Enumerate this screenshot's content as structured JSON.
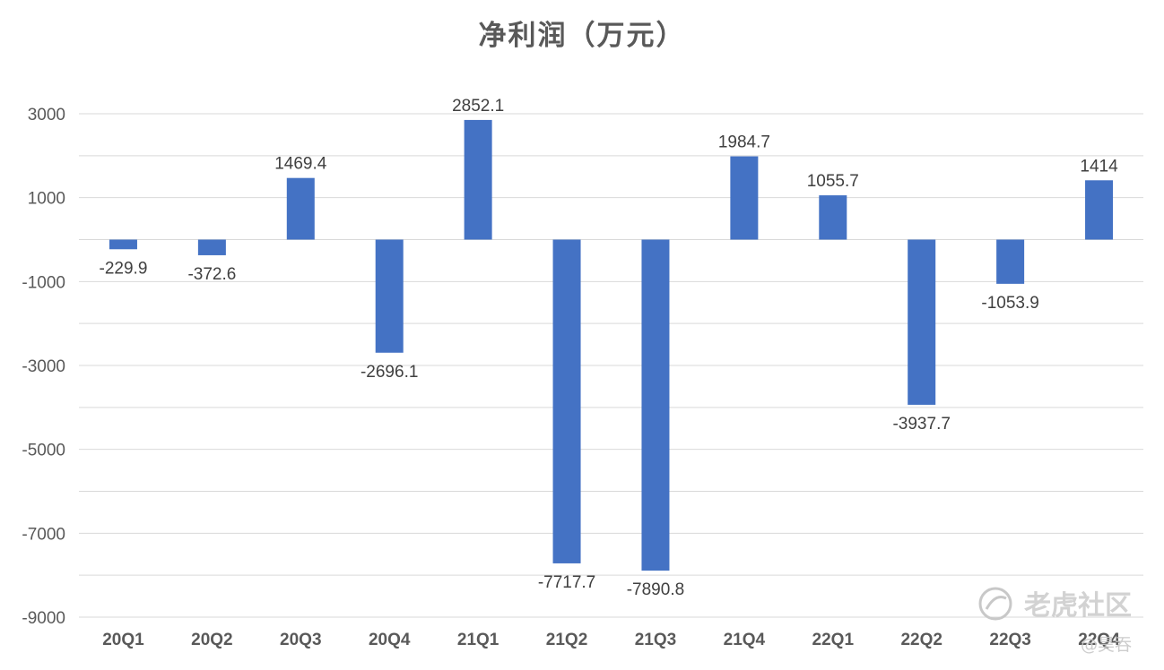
{
  "chart_data": {
    "type": "bar",
    "title": "净利润（万元）",
    "categories": [
      "20Q1",
      "20Q2",
      "20Q3",
      "20Q4",
      "21Q1",
      "21Q2",
      "21Q3",
      "21Q4",
      "22Q1",
      "22Q2",
      "22Q3",
      "22Q4"
    ],
    "values": [
      -229.9,
      -372.6,
      1469.4,
      -2696.1,
      2852.1,
      -7717.7,
      -7890.8,
      1984.7,
      1055.7,
      -3937.7,
      -1053.9,
      1414
    ],
    "data_labels": [
      "-229.9",
      "-372.6",
      "1469.4",
      "-2696.1",
      "2852.1",
      "-7717.7",
      "-7890.8",
      "1984.7",
      "1055.7",
      "-3937.7",
      "-1053.9",
      "1414"
    ],
    "yticks": [
      3000,
      1000,
      -1000,
      -3000,
      -5000,
      -7000,
      -9000
    ],
    "ylim": [
      -9000,
      3000
    ],
    "grid": true,
    "legend": "none",
    "bar_color": "#4472C4"
  },
  "watermark": {
    "text": "老虎社区",
    "user": "@昊吞",
    "icon": "tiger-logo-icon"
  }
}
